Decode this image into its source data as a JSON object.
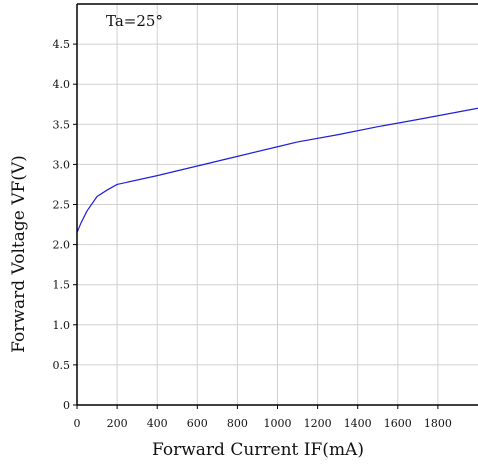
{
  "chart_data": {
    "type": "line",
    "title": "",
    "annotation": "Ta=25°",
    "xlabel": "Forward Current IF(mA)",
    "ylabel": "Forward Voltage VF(V)",
    "xlim": [
      0,
      2000
    ],
    "ylim": [
      0,
      5
    ],
    "x_ticks": [
      0,
      200,
      400,
      600,
      800,
      1000,
      1200,
      1400,
      1600,
      1800
    ],
    "x_tick_labels": [
      "0",
      "200",
      "400",
      "600",
      "800",
      "1000",
      "1200",
      "1400",
      "1600",
      "1800"
    ],
    "y_ticks": [
      0,
      0.5,
      1.0,
      1.5,
      2.0,
      2.5,
      3.0,
      3.5,
      4.0,
      4.5
    ],
    "y_tick_labels": [
      "0",
      "0.5",
      "1.0",
      "1.5",
      "2.0",
      "2.5",
      "3.0",
      "3.5",
      "4.0",
      "4.5"
    ],
    "grid": true,
    "legend": "none",
    "series": [
      {
        "color": "#1f1fd6",
        "x": [
          0,
          20,
          50,
          100,
          150,
          200,
          400,
          600,
          800,
          1000,
          1100,
          1300,
          1500,
          1700,
          2000
        ],
        "y": [
          2.15,
          2.27,
          2.42,
          2.6,
          2.68,
          2.75,
          2.86,
          2.98,
          3.1,
          3.22,
          3.28,
          3.37,
          3.47,
          3.56,
          3.7
        ]
      }
    ]
  }
}
